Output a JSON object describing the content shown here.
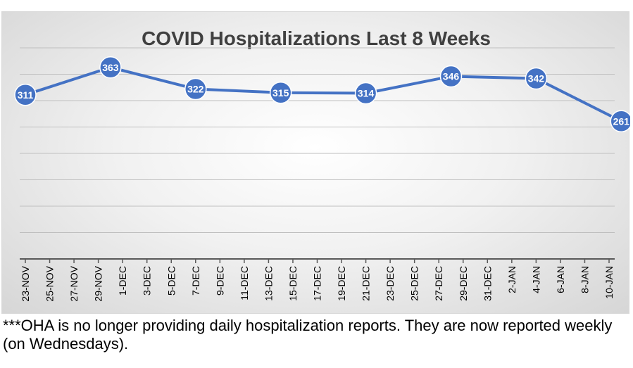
{
  "chart_data": {
    "type": "line",
    "title": "COVID Hospitalizations Last 8 Weeks",
    "xlabel": "",
    "ylabel": "",
    "ylim": [
      0,
      400
    ],
    "grid": true,
    "tick_labels": [
      "23-NOV",
      "25-NOV",
      "27-NOV",
      "29-NOV",
      "1-DEC",
      "3-DEC",
      "5-DEC",
      "7-DEC",
      "9-DEC",
      "11-DEC",
      "13-DEC",
      "15-DEC",
      "17-DEC",
      "19-DEC",
      "21-DEC",
      "23-DEC",
      "25-DEC",
      "27-DEC",
      "29-DEC",
      "31-DEC",
      "2-JAN",
      "4-JAN",
      "6-JAN",
      "8-JAN",
      "10-JAN"
    ],
    "series": [
      {
        "name": "Hospitalizations",
        "x_index": [
          0,
          3.5,
          7,
          10.5,
          14,
          17.5,
          21,
          24.5
        ],
        "values": [
          311,
          363,
          322,
          315,
          314,
          346,
          342,
          261
        ],
        "labels": [
          "311",
          "363",
          "322",
          "315",
          "314",
          "346",
          "342",
          "261"
        ]
      }
    ],
    "colors": {
      "line": "#4472c4",
      "marker": "#4472c4",
      "grid": "#bfbfbf",
      "axis": "#595959",
      "title": "#404040"
    }
  },
  "footnote": "***OHA is no longer providing daily hospitalization reports.  They are now reported weekly (on Wednesdays)."
}
